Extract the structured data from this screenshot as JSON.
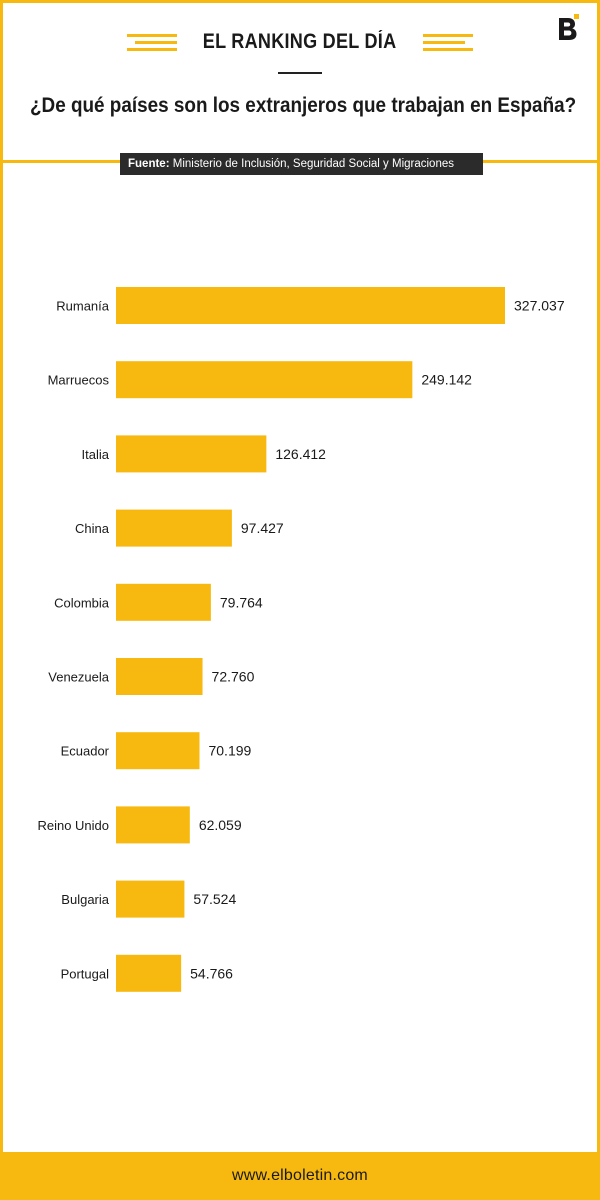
{
  "header": {
    "kicker": "EL RANKING DEL DÍA",
    "question": "¿De qué países son los extranjeros que trabajan en España?",
    "source_label": "Fuente:",
    "source_text": "Ministerio de Inclusión, Seguridad Social y Migraciones",
    "logo_icon": "elboletin-b-logo-icon"
  },
  "colors": {
    "accent": "#f7b90f",
    "text": "#1a1a1a",
    "source_bg": "#2b2b2b"
  },
  "chart_data": {
    "type": "bar",
    "orientation": "horizontal",
    "categories": [
      "Rumanía",
      "Marruecos",
      "Italia",
      "China",
      "Colombia",
      "Venezuela",
      "Ecuador",
      "Reino Unido",
      "Bulgaria",
      "Portugal"
    ],
    "values": [
      327037,
      249142,
      126412,
      97427,
      79764,
      72760,
      70199,
      62059,
      57524,
      54766
    ],
    "value_labels": [
      "327.037",
      "249.142",
      "126.412",
      "97.427",
      "79.764",
      "72.760",
      "70.199",
      "62.059",
      "57.524",
      "54.766"
    ],
    "grid": false,
    "legend": "none"
  },
  "footer": {
    "url": "www.elboletin.com"
  }
}
